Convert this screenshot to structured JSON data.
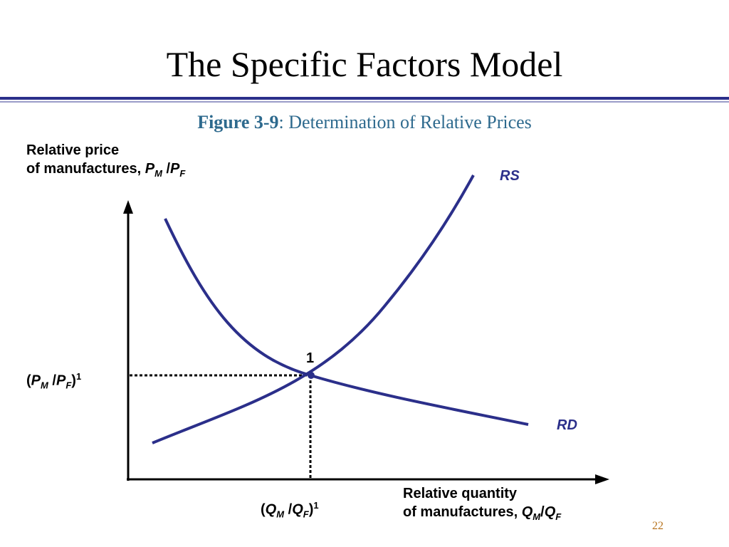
{
  "slide": {
    "title": "The Specific Factors Model",
    "figure_label": "Figure 3-9",
    "figure_sep": ":",
    "figure_caption": "Determination of Relative Prices",
    "page_number": "22"
  },
  "diagram": {
    "y_axis_label": {
      "line1": "Relative price",
      "line2_prefix": "of manufactures,",
      "num_var": "P",
      "num_sub": "M",
      "slash": "/",
      "den_var": "P",
      "den_sub": "F"
    },
    "x_axis_label": {
      "line1": "Relative quantity",
      "line2_prefix": "of manufactures,",
      "num_var": "Q",
      "num_sub": "M",
      "slash": "/",
      "den_var": "Q",
      "den_sub": "F"
    },
    "equilibrium_price_label": {
      "open": "(",
      "num_var": "P",
      "num_sub": "M",
      "slash": "/",
      "den_var": "P",
      "den_sub": "F",
      "close": ")",
      "sup": "1"
    },
    "equilibrium_quantity_label": {
      "open": "(",
      "num_var": "Q",
      "num_sub": "M",
      "slash": "/",
      "den_var": "Q",
      "den_sub": "F",
      "close": ")",
      "sup": "1"
    },
    "equilibrium_point_label": "1",
    "curves": {
      "supply": "RS",
      "demand": "RD"
    },
    "colors": {
      "curve": "#2b2f8a",
      "axis": "#000000",
      "title_rule": "#2b2f8a",
      "caption": "#2e6a8e",
      "page_number": "#b8741e"
    }
  }
}
